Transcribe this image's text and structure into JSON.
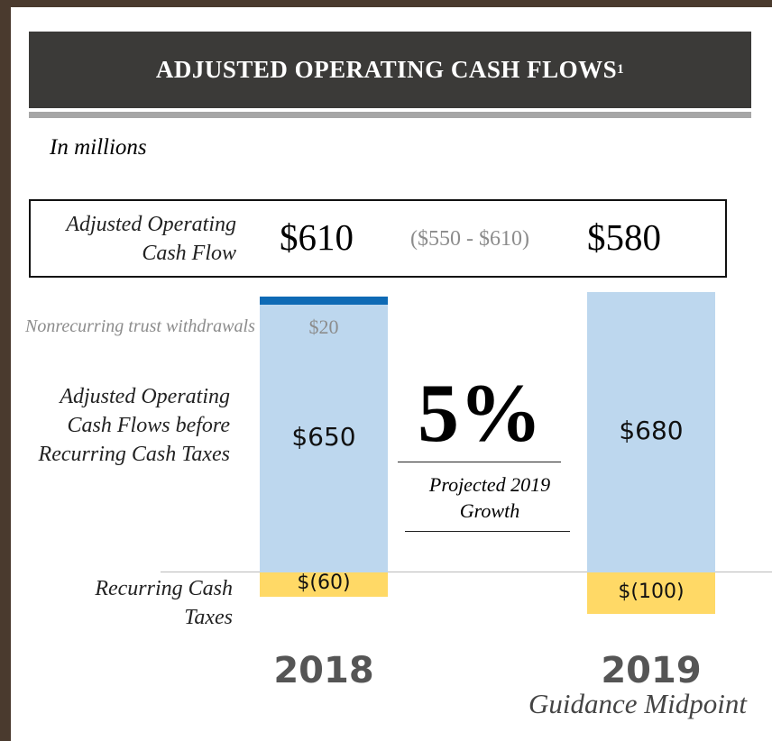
{
  "title": "ADJUSTED OPERATING CASH FLOWS",
  "title_footnote": "1",
  "subtitle": "In millions",
  "summary": {
    "label": "Adjusted Operating Cash Flow",
    "left": "$610",
    "range": "($550 - $610)",
    "right": "$580"
  },
  "growth": {
    "value_text": "5%",
    "caption": "Projected 2019 Growth"
  },
  "chart_data": {
    "type": "bar",
    "stacked": true,
    "categories": [
      "2018",
      "2019"
    ],
    "category_notes": [
      null,
      "Guidance Midpoint"
    ],
    "series": [
      {
        "name": "Adjusted Operating Cash Flows before Recurring Cash Taxes",
        "color": "#bdd7ee",
        "values": [
          650,
          680
        ],
        "value_labels": [
          "$650",
          "$680"
        ]
      },
      {
        "name": "Nonrecurring trust withdrawals",
        "color": "#0e6ab5",
        "values": [
          20,
          null
        ],
        "value_labels": [
          "$20",
          null
        ]
      },
      {
        "name": "Recurring Cash Taxes",
        "color": "#ffd966",
        "values": [
          -60,
          -100
        ],
        "value_labels": [
          "$(60)",
          "$(100)"
        ]
      }
    ]
  }
}
